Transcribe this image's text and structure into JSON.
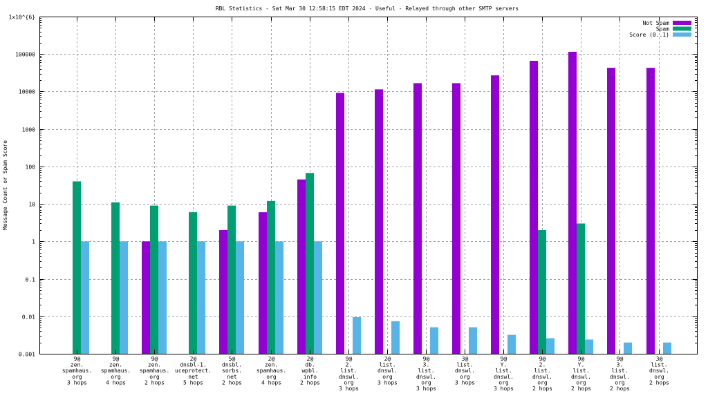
{
  "chart_data": {
    "type": "bar",
    "title": "RBL Statistics - Sat Mar 30 12:58:15 EDT 2024 - Useful - Relayed through other SMTP servers",
    "xlabel": "",
    "ylabel": "Message Count or Spam Score",
    "yscale": "log",
    "ylim": [
      0.001,
      1000000
    ],
    "grid": true,
    "legend_position": "top-right",
    "yticks": [
      {
        "value": 1000000,
        "label": "1x10^{6}"
      },
      {
        "value": 100000,
        "label": "100000"
      },
      {
        "value": 10000,
        "label": "10000"
      },
      {
        "value": 1000,
        "label": "1000"
      },
      {
        "value": 100,
        "label": "100"
      },
      {
        "value": 10,
        "label": "10"
      },
      {
        "value": 1,
        "label": "1"
      },
      {
        "value": 0.1,
        "label": "0.1"
      },
      {
        "value": 0.01,
        "label": "0.01"
      },
      {
        "value": 0.001,
        "label": "0.001"
      }
    ],
    "categories": [
      [
        "9@",
        "zen.",
        "spamhaus.",
        "org",
        "3 hops"
      ],
      [
        "9@",
        "zen.",
        "spamhaus.",
        "org",
        "4 hops"
      ],
      [
        "9@",
        "zen.",
        "spamhaus.",
        "org",
        "2 hops"
      ],
      [
        "2@",
        "dnsbl-1.",
        "uceprotect.",
        "net",
        "5 hops"
      ],
      [
        "5@",
        "dnsbl.",
        "sorbs.",
        "net",
        "2 hops"
      ],
      [
        "2@",
        "zen.",
        "spamhaus.",
        "org",
        "4 hops"
      ],
      [
        "2@",
        "db.",
        "wpbl.",
        "info",
        "2 hops"
      ],
      [
        "9@",
        "2.",
        "list.",
        "dnswl.",
        "org",
        "3 hops"
      ],
      [
        "2@",
        "list.",
        "dnswl.",
        "org",
        "3 hops"
      ],
      [
        "9@",
        "3.",
        "list.",
        "dnswl.",
        "org",
        "3 hops"
      ],
      [
        "3@",
        "list.",
        "dnswl.",
        "org",
        "3 hops"
      ],
      [
        "9@",
        "Y.",
        "list.",
        "dnswl.",
        "org",
        "3 hops"
      ],
      [
        "9@",
        "2.",
        "list.",
        "dnswl.",
        "org",
        "2 hops"
      ],
      [
        "9@",
        "Y.",
        "list.",
        "dnswl.",
        "org",
        "2 hops"
      ],
      [
        "9@",
        "3.",
        "list.",
        "dnswl.",
        "org",
        "2 hops"
      ],
      [
        "3@",
        "list.",
        "dnswl.",
        "org",
        "2 hops"
      ]
    ],
    "series": [
      {
        "name": "Not Spam",
        "color": "#9400d3",
        "values": [
          null,
          null,
          1,
          null,
          2,
          6,
          45,
          9200,
          11400,
          16700,
          16700,
          27000,
          66000,
          115000,
          43000,
          43000
        ]
      },
      {
        "name": "Spam",
        "color": "#009e73",
        "values": [
          40,
          11,
          9,
          6,
          9,
          12,
          67,
          null,
          null,
          null,
          null,
          null,
          2,
          3,
          null,
          null
        ]
      },
      {
        "name": "Score (0..1)",
        "color": "#56b4e9",
        "values": [
          1,
          1,
          1,
          1,
          1,
          1,
          1,
          0.0095,
          0.0074,
          0.0051,
          0.0051,
          0.0032,
          0.0026,
          0.0024,
          0.002,
          0.002
        ]
      }
    ]
  }
}
